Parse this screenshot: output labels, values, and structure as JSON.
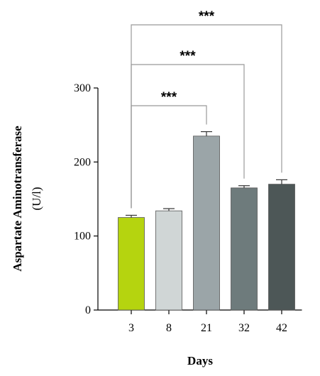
{
  "chart_data": {
    "type": "bar",
    "categories": [
      "3",
      "8",
      "21",
      "32",
      "42"
    ],
    "values": [
      125,
      134,
      235,
      165,
      170
    ],
    "errors": [
      3,
      3,
      6,
      3,
      6
    ],
    "colors": [
      "#b5d40f",
      "#d0d6d6",
      "#9ba5a8",
      "#6e7b7c",
      "#4d5757"
    ],
    "xlabel": "Days",
    "ylabel": "Aspartate Aminotransferase",
    "ylabel_unit": "(U/l)",
    "ylim": [
      0,
      300
    ],
    "yticks": [
      0,
      100,
      200,
      300
    ],
    "grid": false,
    "significance": [
      {
        "from": "3",
        "to": "21",
        "label": "***"
      },
      {
        "from": "3",
        "to": "32",
        "label": "***"
      },
      {
        "from": "3",
        "to": "42",
        "label": "***"
      }
    ]
  }
}
